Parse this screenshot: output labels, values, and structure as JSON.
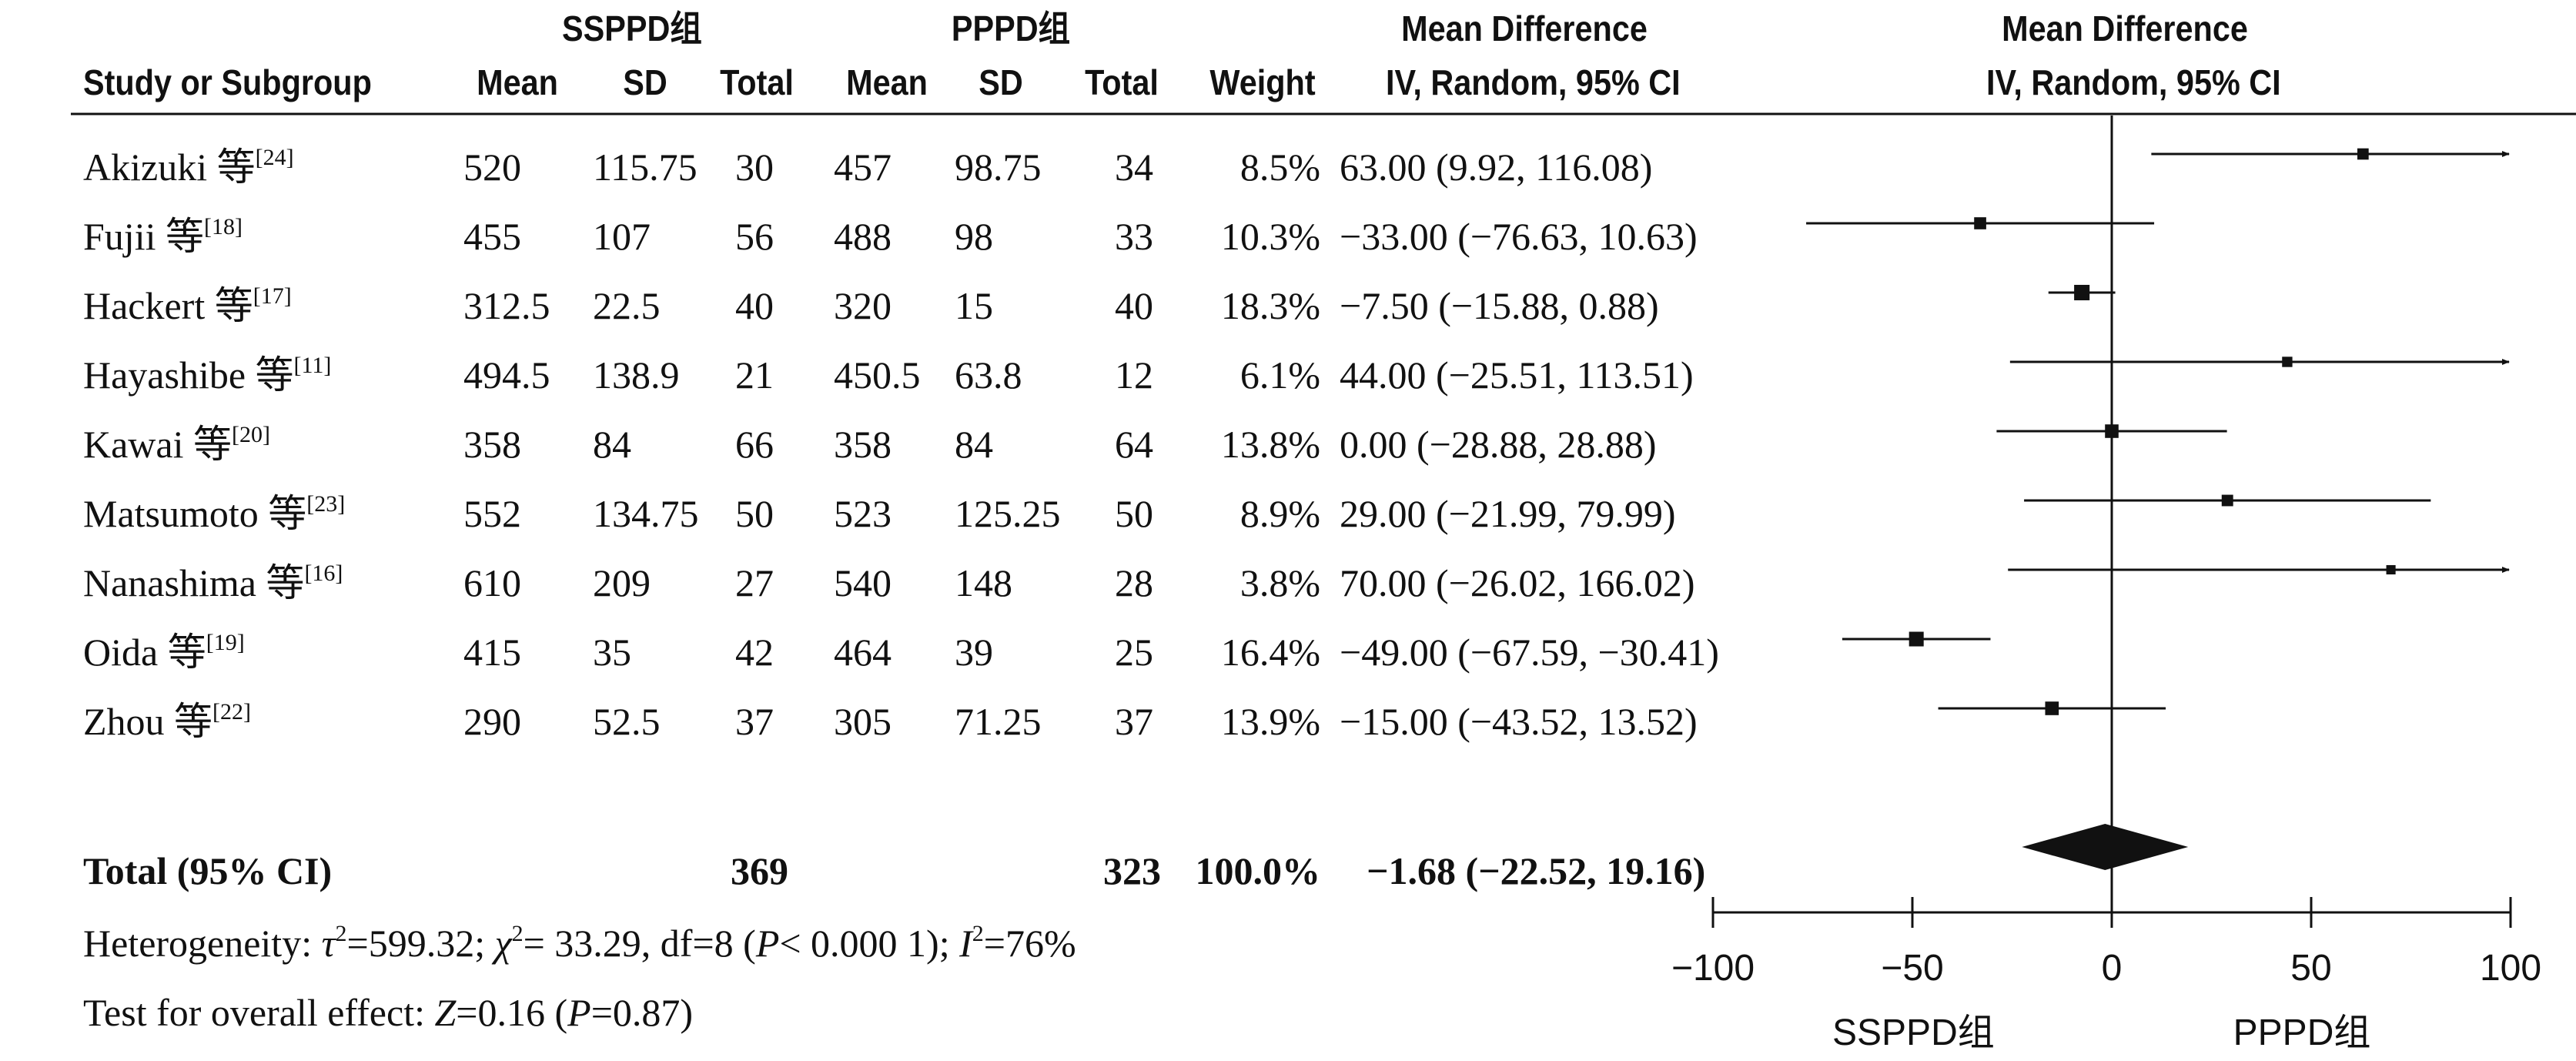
{
  "headers": {
    "group1": "SSPPD组",
    "group2": "PPPD组",
    "md_title": "Mean Difference",
    "md_sub": "IV, Random, 95% CI",
    "plot_title": "Mean Difference",
    "plot_sub": "IV, Random, 95% CI",
    "study": "Study or Subgroup",
    "mean1": "Mean",
    "sd1": "SD",
    "total1": "Total",
    "mean2": "Mean",
    "sd2": "SD",
    "total2": "Total",
    "weight": "Weight"
  },
  "studies": [
    {
      "name": "Akizuki 等",
      "ref": "[24]",
      "mean1": "520",
      "sd1": "115.75",
      "total1": "30",
      "mean2": "457",
      "sd2": "98.75",
      "total2": "34",
      "weight": "8.5%",
      "ci_text": "63.00 (9.92, 116.08)"
    },
    {
      "name": "Fujii 等",
      "ref": "[18]",
      "mean1": "455",
      "sd1": "107",
      "total1": "56",
      "mean2": "488",
      "sd2": "98",
      "total2": "33",
      "weight": "10.3%",
      "ci_text": "−33.00 (−76.63, 10.63)"
    },
    {
      "name": "Hackert 等",
      "ref": "[17]",
      "mean1": "312.5",
      "sd1": "22.5",
      "total1": "40",
      "mean2": "320",
      "sd2": "15",
      "total2": "40",
      "weight": "18.3%",
      "ci_text": "−7.50 (−15.88, 0.88)"
    },
    {
      "name": "Hayashibe 等",
      "ref": "[11]",
      "mean1": "494.5",
      "sd1": "138.9",
      "total1": "21",
      "mean2": "450.5",
      "sd2": "63.8",
      "total2": "12",
      "weight": "6.1%",
      "ci_text": "44.00 (−25.51, 113.51)"
    },
    {
      "name": "Kawai 等",
      "ref": "[20]",
      "mean1": "358",
      "sd1": "84",
      "total1": "66",
      "mean2": "358",
      "sd2": "84",
      "total2": "64",
      "weight": "13.8%",
      "ci_text": "0.00 (−28.88, 28.88)"
    },
    {
      "name": "Matsumoto 等",
      "ref": "[23]",
      "mean1": "552",
      "sd1": "134.75",
      "total1": "50",
      "mean2": "523",
      "sd2": "125.25",
      "total2": "50",
      "weight": "8.9%",
      "ci_text": "29.00 (−21.99, 79.99)"
    },
    {
      "name": "Nanashima 等",
      "ref": "[16]",
      "mean1": "610",
      "sd1": "209",
      "total1": "27",
      "mean2": "540",
      "sd2": "148",
      "total2": "28",
      "weight": "3.8%",
      "ci_text": "70.00 (−26.02, 166.02)"
    },
    {
      "name": "Oida 等",
      "ref": "[19]",
      "mean1": "415",
      "sd1": "35",
      "total1": "42",
      "mean2": "464",
      "sd2": "39",
      "total2": "25",
      "weight": "16.4%",
      "ci_text": "−49.00 (−67.59, −30.41)"
    },
    {
      "name": "Zhou 等",
      "ref": "[22]",
      "mean1": "290",
      "sd1": "52.5",
      "total1": "37",
      "mean2": "305",
      "sd2": "71.25",
      "total2": "37",
      "weight": "13.9%",
      "ci_text": "−15.00 (−43.52, 13.52)"
    }
  ],
  "total": {
    "label": "Total (95% CI)",
    "total1": "369",
    "total2": "323",
    "weight": "100.0%",
    "ci_text": "−1.68 (−22.52, 19.16)"
  },
  "heterogeneity": {
    "prefix": "Heterogeneity: ",
    "tau": "τ",
    "tau_val": "=599.32; ",
    "chi": "χ",
    "chi_val": "= 33.29, df=8 (",
    "p": "P",
    "p_val": "< 0.000 1); ",
    "i": "I",
    "i_val": "=76%"
  },
  "overall": {
    "prefix": "Test for overall effect: ",
    "z": "Z",
    "z_val": "=0.16 (",
    "p": "P",
    "p_val": "=0.87)"
  },
  "axis": {
    "tick_labels": [
      "−100",
      "−50",
      "0",
      "50",
      "100"
    ],
    "left_label": "SSPPD组",
    "right_label": "PPPD组"
  },
  "chart_data": {
    "type": "forest",
    "xlim": [
      -100,
      100
    ],
    "ticks": [
      -100,
      -50,
      0,
      50,
      100
    ],
    "studies": [
      {
        "study": "Akizuki",
        "md": 63.0,
        "lo": 9.92,
        "hi": 116.08,
        "weight": 8.5
      },
      {
        "study": "Fujii",
        "md": -33.0,
        "lo": -76.63,
        "hi": 10.63,
        "weight": 10.3
      },
      {
        "study": "Hackert",
        "md": -7.5,
        "lo": -15.88,
        "hi": 0.88,
        "weight": 18.3
      },
      {
        "study": "Hayashibe",
        "md": 44.0,
        "lo": -25.51,
        "hi": 113.51,
        "weight": 6.1
      },
      {
        "study": "Kawai",
        "md": 0.0,
        "lo": -28.88,
        "hi": 28.88,
        "weight": 13.8
      },
      {
        "study": "Matsumoto",
        "md": 29.0,
        "lo": -21.99,
        "hi": 79.99,
        "weight": 8.9
      },
      {
        "study": "Nanashima",
        "md": 70.0,
        "lo": -26.02,
        "hi": 166.02,
        "weight": 3.8
      },
      {
        "study": "Oida",
        "md": -49.0,
        "lo": -67.59,
        "hi": -30.41,
        "weight": 16.4
      },
      {
        "study": "Zhou",
        "md": -15.0,
        "lo": -43.52,
        "hi": 13.52,
        "weight": 13.9
      }
    ],
    "pooled": {
      "md": -1.68,
      "lo": -22.52,
      "hi": 19.16,
      "weight": 100.0
    }
  }
}
